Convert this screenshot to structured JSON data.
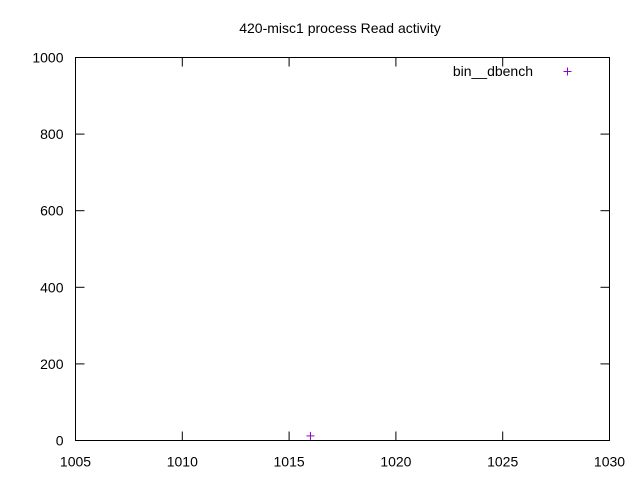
{
  "chart_data": {
    "type": "scatter",
    "title": "420-misc1 process Read activity",
    "xlabel": "",
    "ylabel": "",
    "xlim": [
      1005,
      1030
    ],
    "ylim": [
      0,
      1000
    ],
    "x_ticks": [
      1005,
      1010,
      1015,
      1020,
      1025,
      1030
    ],
    "y_ticks": [
      0,
      200,
      400,
      600,
      800,
      1000
    ],
    "grid": false,
    "legend_position": "top-right",
    "series": [
      {
        "name": "bin__dbench",
        "color": "#9400d3",
        "marker": "plus",
        "points": [
          {
            "x": 1016,
            "y": 12
          }
        ]
      }
    ]
  }
}
